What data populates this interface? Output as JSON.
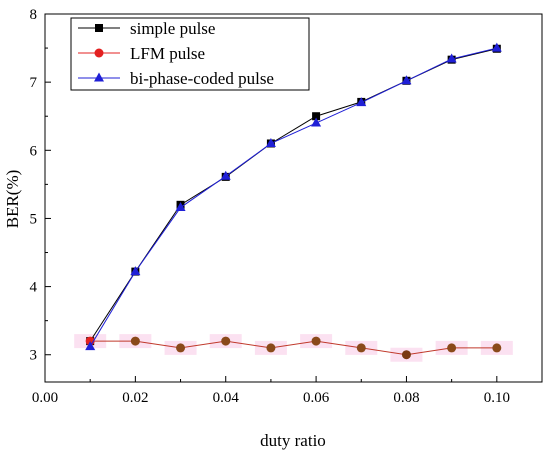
{
  "chart_data": {
    "type": "line",
    "xlabel": "duty ratio",
    "ylabel": "BER(%)",
    "xlim": [
      0.0,
      0.11
    ],
    "ylim": [
      2.6,
      8.0
    ],
    "xticks": [
      0.0,
      0.02,
      0.04,
      0.06,
      0.08,
      0.1
    ],
    "xtick_labels": [
      "0.00",
      "0.02",
      "0.04",
      "0.06",
      "0.08",
      "0.10"
    ],
    "yticks": [
      3,
      4,
      5,
      6,
      7,
      8
    ],
    "ytick_labels": [
      "3",
      "4",
      "5",
      "6",
      "7",
      "8"
    ],
    "legend_position": "top-left",
    "x": [
      0.01,
      0.02,
      0.03,
      0.04,
      0.05,
      0.06,
      0.07,
      0.08,
      0.09,
      0.1
    ],
    "series": [
      {
        "name": "simple pulse",
        "marker": "square",
        "color": "#000000",
        "values": [
          3.2,
          4.22,
          5.2,
          5.61,
          6.1,
          6.5,
          6.71,
          7.02,
          7.33,
          7.49
        ]
      },
      {
        "name": "LFM pulse",
        "marker": "circle",
        "color": "#e32020",
        "values": [
          3.2,
          3.2,
          3.1,
          3.2,
          3.1,
          3.2,
          3.1,
          3.0,
          3.1,
          3.1
        ]
      },
      {
        "name": "bi-phase-coded pulse",
        "marker": "triangle",
        "color": "#1f1fd6",
        "values": [
          3.12,
          4.22,
          5.16,
          5.62,
          6.1,
          6.4,
          6.7,
          7.02,
          7.34,
          7.5
        ]
      }
    ]
  }
}
